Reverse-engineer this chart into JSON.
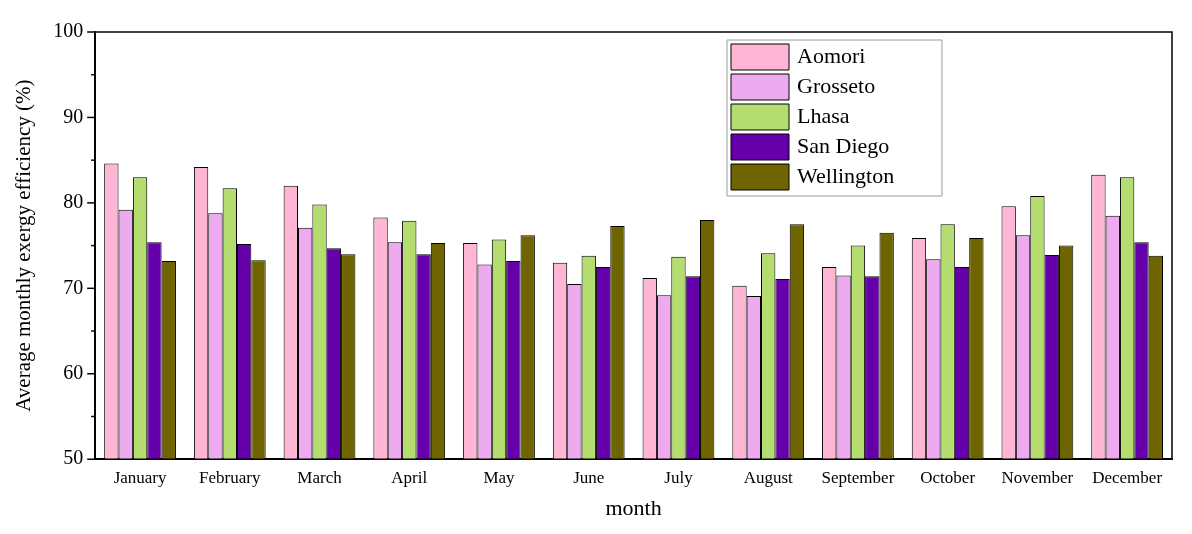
{
  "chart_data": {
    "type": "bar",
    "xlabel": "month",
    "ylabel": "Average monthly exergy efficiency (%)",
    "categories": [
      "January",
      "February",
      "March",
      "April",
      "May",
      "June",
      "July",
      "August",
      "September",
      "October",
      "November",
      "December"
    ],
    "series": [
      {
        "name": "Aomori",
        "color": "#ffb6d5",
        "values": [
          84.6,
          84.2,
          82.0,
          78.3,
          75.3,
          73.0,
          71.2,
          70.3,
          72.5,
          75.9,
          79.6,
          83.3
        ]
      },
      {
        "name": "Grosseto",
        "color": "#eeaaee",
        "values": [
          79.2,
          78.8,
          77.1,
          75.4,
          72.8,
          70.5,
          69.2,
          69.1,
          71.5,
          73.4,
          76.2,
          78.5
        ]
      },
      {
        "name": "Lhasa",
        "color": "#b4dc6e",
        "values": [
          83.0,
          81.7,
          79.8,
          77.9,
          75.7,
          73.8,
          73.7,
          74.1,
          75.0,
          77.5,
          80.8,
          83.0
        ]
      },
      {
        "name": "San Diego",
        "color": "#6600aa",
        "values": [
          75.4,
          75.2,
          74.7,
          74.0,
          73.2,
          72.5,
          71.4,
          71.1,
          71.4,
          72.5,
          73.9,
          75.4
        ]
      },
      {
        "name": "Wellington",
        "color": "#6e6400",
        "values": [
          73.2,
          73.3,
          74.0,
          75.3,
          76.2,
          77.3,
          78.0,
          77.5,
          76.5,
          75.9,
          75.0,
          73.8
        ]
      }
    ],
    "ylim": [
      50,
      100
    ],
    "yticks": [
      50,
      {
        "value": 55,
        "label": null
      },
      60,
      {
        "value": 65,
        "label": null
      },
      70,
      {
        "value": 75,
        "label": null
      },
      80,
      {
        "value": 85,
        "label": null
      },
      90,
      {
        "value": 95,
        "label": null
      },
      100
    ],
    "grid": false,
    "legend": "top right"
  }
}
